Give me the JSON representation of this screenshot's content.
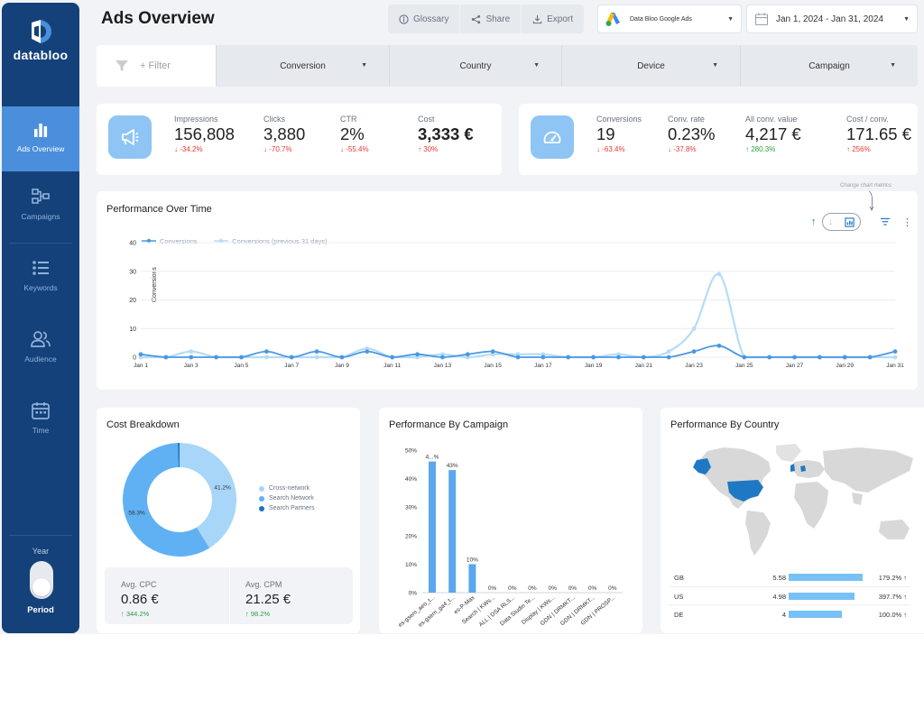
{
  "brand": {
    "name": "databloo"
  },
  "page": {
    "title": "Ads Overview"
  },
  "sidebar": {
    "items": [
      {
        "label": "Ads Overview",
        "icon": "bar-chart-icon",
        "active": true
      },
      {
        "label": "Campaigns",
        "icon": "hierarchy-icon",
        "active": false
      },
      {
        "label": "Keywords",
        "icon": "list-icon",
        "active": false
      },
      {
        "label": "Audience",
        "icon": "users-icon",
        "active": false
      },
      {
        "label": "Time",
        "icon": "calendar-icon",
        "active": false
      }
    ],
    "year_label": "Year",
    "period_label": "Period",
    "toggle_state": "period"
  },
  "toolbar": {
    "glossary_label": "Glossary",
    "share_label": "Share",
    "export_label": "Export"
  },
  "account": {
    "label": "Data Bloo Google Ads",
    "icon": "google-ads-icon"
  },
  "date_range": {
    "label": "Jan 1, 2024 - Jan 31, 2024"
  },
  "filters": {
    "add_label": "+ Filter",
    "dropdowns": [
      "Conversion",
      "Country",
      "Device",
      "Campaign"
    ]
  },
  "kpis_left": [
    {
      "label": "Impressions",
      "value": "156,808",
      "delta": "-34.2%",
      "dir": "down"
    },
    {
      "label": "Clicks",
      "value": "3,880",
      "delta": "-70.7%",
      "dir": "down"
    },
    {
      "label": "CTR",
      "value": "2%",
      "delta": "-55.4%",
      "dir": "down"
    },
    {
      "label": "Cost",
      "value": "3,333 €",
      "delta": "30%",
      "dir": "up"
    }
  ],
  "kpis_right": [
    {
      "label": "Conversions",
      "value": "19",
      "delta": "-63.4%",
      "dir": "down"
    },
    {
      "label": "Conv. rate",
      "value": "0.23%",
      "delta": "-37.8%",
      "dir": "down"
    },
    {
      "label": "All conv. value",
      "value": "4,217 €",
      "delta": "280.3%",
      "dir": "up"
    },
    {
      "label": "Cost / conv.",
      "value": "171.65 €",
      "delta": "256%",
      "dir": "up"
    }
  ],
  "performance_over_time": {
    "title": "Performance Over Time",
    "hint": "Change chart metrics",
    "colors": {
      "current": "#4a98e2",
      "previous": "#b5dcf7"
    },
    "chart_data": {
      "type": "line",
      "ylabel": "Conversions",
      "ylim": [
        0,
        40
      ],
      "yticks": [
        0,
        10,
        20,
        30,
        40
      ],
      "xtick_labels": [
        "Jan 1",
        "Jan 3",
        "Jan 5",
        "Jan 7",
        "Jan 9",
        "Jan 11",
        "Jan 13",
        "Jan 15",
        "Jan 17",
        "Jan 19",
        "Jan 21",
        "Jan 23",
        "Jan 25",
        "Jan 27",
        "Jan 29",
        "Jan 31"
      ],
      "series": [
        {
          "name": "Conversions",
          "values": [
            1,
            0,
            0,
            0,
            0,
            2,
            0,
            2,
            0,
            2,
            0,
            1,
            0,
            1,
            2,
            0,
            0,
            0,
            0,
            0,
            0,
            0,
            2,
            4,
            0,
            0,
            0,
            0,
            0,
            0,
            2
          ]
        },
        {
          "name": "Conversions (previous 31 days)",
          "values": [
            0,
            0,
            2,
            0,
            0,
            0,
            0,
            0,
            0,
            3,
            0,
            0,
            1,
            0,
            1,
            1,
            1,
            0,
            0,
            1,
            0,
            2,
            10,
            29,
            0,
            0,
            0,
            0,
            0,
            0,
            0
          ]
        }
      ]
    }
  },
  "cost_breakdown": {
    "title": "Cost Breakdown",
    "chart_data": {
      "type": "pie",
      "slices": [
        {
          "name": "Cross-network",
          "value": 41.2,
          "label": "41.2%",
          "color": "#a7d6f8"
        },
        {
          "name": "Search Network",
          "value": 58.3,
          "label": "58.3%",
          "color": "#60b1f3"
        },
        {
          "name": "Search Partners",
          "value": 0.5,
          "label": "",
          "color": "#1c73c4"
        }
      ]
    },
    "stats": [
      {
        "label": "Avg. CPC",
        "value": "0.86 €",
        "delta": "344.2%",
        "dir": "up"
      },
      {
        "label": "Avg. CPM",
        "value": "21.25 €",
        "delta": "98.2%",
        "dir": "up"
      }
    ]
  },
  "performance_by_campaign": {
    "title": "Performance By Campaign",
    "bar_color": "#5ba7ee",
    "chart_data": {
      "type": "bar",
      "categories": [
        "es-gsem_aeo_t...",
        "es-gsem_ga4_t...",
        "es-P-Max",
        "Search | KWs...",
        "ALL | DSA RLS...",
        "Data Studio Te...",
        "Display | KWs...",
        "GDN | DRMKT...",
        "GDN | DRMKT...",
        "GDN | PROSP..."
      ],
      "values": [
        46,
        43,
        10,
        0,
        0,
        0,
        0,
        0,
        0,
        0
      ],
      "labels": [
        "4...%",
        "43%",
        "10%",
        "0%",
        "0%",
        "0%",
        "0%",
        "0%",
        "0%",
        "0%"
      ],
      "ylim": [
        0,
        50
      ],
      "yticks": [
        "0%",
        "10%",
        "20%",
        "30%",
        "40%",
        "50%"
      ]
    }
  },
  "performance_by_country": {
    "title": "Performance By Country",
    "rows": [
      {
        "code": "GB",
        "value": "5.58",
        "bar": 1.0,
        "pct": "179.2% ↑"
      },
      {
        "code": "US",
        "value": "4.98",
        "bar": 0.89,
        "pct": "397.7% ↑"
      },
      {
        "code": "DE",
        "value": "4",
        "bar": 0.72,
        "pct": "100.0% ↑"
      }
    ]
  }
}
